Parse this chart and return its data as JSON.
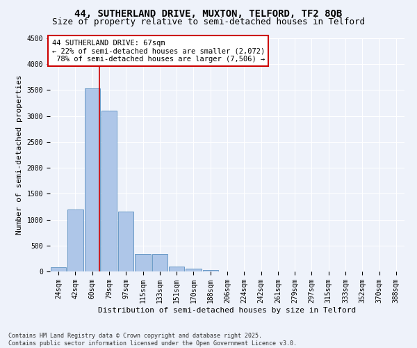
{
  "title_line1": "44, SUTHERLAND DRIVE, MUXTON, TELFORD, TF2 8QB",
  "title_line2": "Size of property relative to semi-detached houses in Telford",
  "xlabel": "Distribution of semi-detached houses by size in Telford",
  "ylabel": "Number of semi-detached properties",
  "bins": [
    "24sqm",
    "42sqm",
    "60sqm",
    "79sqm",
    "97sqm",
    "115sqm",
    "133sqm",
    "151sqm",
    "170sqm",
    "188sqm",
    "206sqm",
    "224sqm",
    "242sqm",
    "261sqm",
    "279sqm",
    "297sqm",
    "315sqm",
    "333sqm",
    "352sqm",
    "370sqm",
    "388sqm"
  ],
  "values": [
    80,
    1200,
    3530,
    3100,
    1160,
    330,
    330,
    100,
    55,
    30,
    5,
    0,
    0,
    0,
    0,
    0,
    0,
    0,
    0,
    0,
    0
  ],
  "bar_color": "#aec6e8",
  "bar_edge_color": "#5a8fc0",
  "property_size": "67sqm",
  "pct_smaller": 22,
  "pct_larger": 78,
  "n_smaller": 2072,
  "n_larger": 7506,
  "vline_x": 2.42,
  "annotation_box_color": "#ffffff",
  "annotation_box_edge": "#cc0000",
  "footnote_line1": "Contains HM Land Registry data © Crown copyright and database right 2025.",
  "footnote_line2": "Contains public sector information licensed under the Open Government Licence v3.0.",
  "ylim": [
    0,
    4500
  ],
  "yticks": [
    0,
    500,
    1000,
    1500,
    2000,
    2500,
    3000,
    3500,
    4000,
    4500
  ],
  "background_color": "#eef2fa",
  "grid_color": "#ffffff",
  "title_fontsize": 10,
  "subtitle_fontsize": 9,
  "axis_label_fontsize": 8,
  "tick_fontsize": 7,
  "footnote_fontsize": 6
}
